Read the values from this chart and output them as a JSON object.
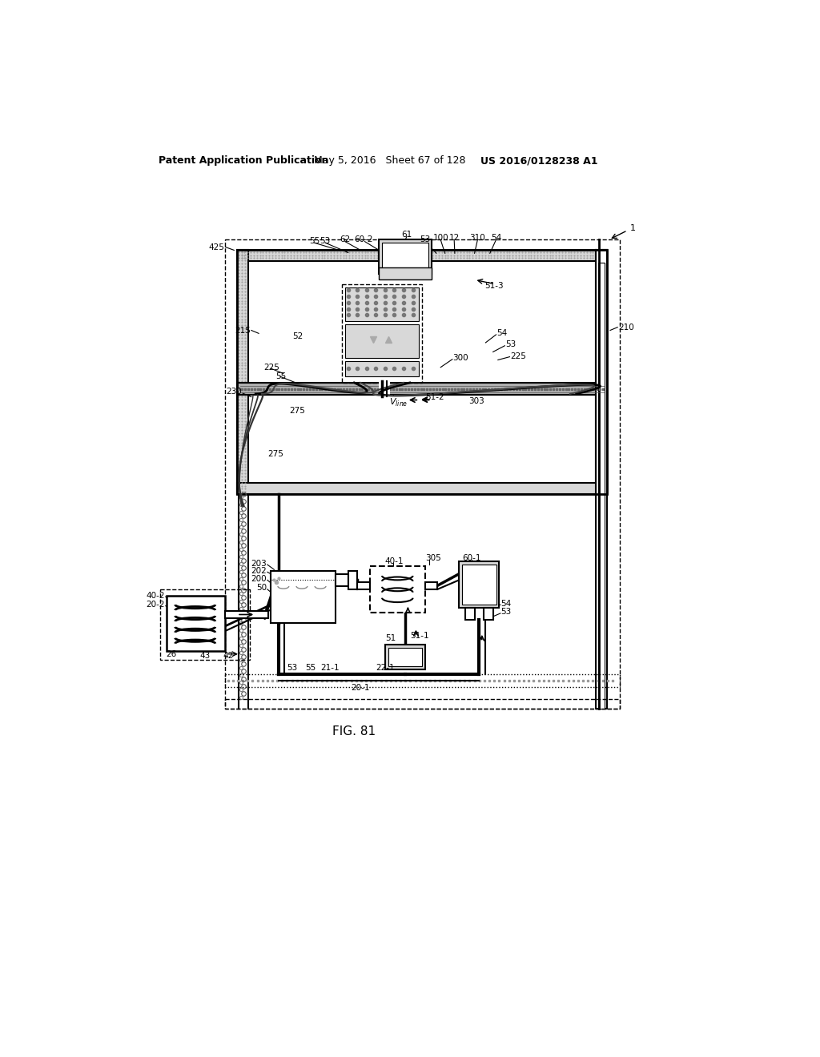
{
  "title": "FIG. 81",
  "header_left": "Patent Application Publication",
  "header_mid": "May 5, 2016   Sheet 67 of 128",
  "header_right": "US 2016/0128238 A1",
  "bg_color": "#ffffff",
  "lc": "#000000",
  "gray_fill": "#b0b0b0",
  "light_gray": "#d8d8d8",
  "stipple_gray": "#888888",
  "hatch_gray": "#aaaaaa"
}
